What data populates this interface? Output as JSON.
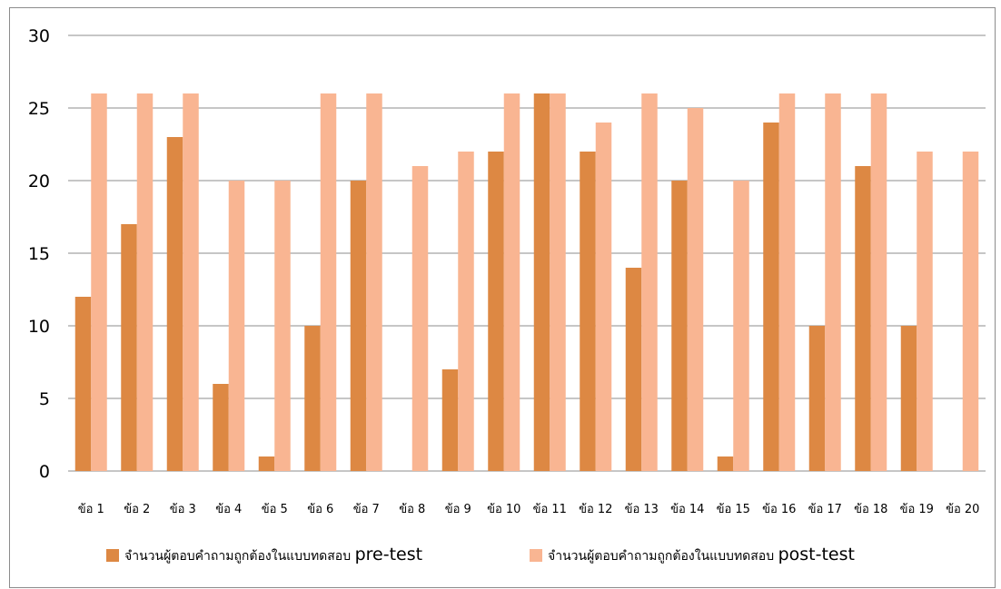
{
  "chart_data": {
    "type": "bar",
    "categories": [
      "ข้อ 1",
      "ข้อ 2",
      "ข้อ 3",
      "ข้อ 4",
      "ข้อ 5",
      "ข้อ 6",
      "ข้อ 7",
      "ข้อ 8",
      "ข้อ 9",
      "ข้อ 10",
      "ข้อ 11",
      "ข้อ 12",
      "ข้อ 13",
      "ข้อ 14",
      "ข้อ 15",
      "ข้อ 16",
      "ข้อ 17",
      "ข้อ 18",
      "ข้อ 19",
      "ข้อ 20"
    ],
    "series": [
      {
        "name": "จำนวนผู้ตอบคำถามถูกต้องในแบบทดสอบ pre-test",
        "name_thai": "จำนวนผู้ตอบคำถามถูกต้องในแบบทดสอบ ",
        "name_latin": "pre-test",
        "color": "#dd8843",
        "values": [
          12,
          17,
          23,
          6,
          1,
          10,
          20,
          0,
          7,
          22,
          26,
          22,
          14,
          20,
          1,
          24,
          10,
          21,
          10,
          0
        ]
      },
      {
        "name": "จำนวนผู้ตอบคำถามถูกต้องในแบบทดสอบ post-test",
        "name_thai": "จำนวนผู้ตอบคำถามถูกต้องในแบบทดสอบ ",
        "name_latin": "post-test",
        "color": "#f9b592",
        "values": [
          26,
          26,
          26,
          20,
          20,
          26,
          26,
          21,
          22,
          26,
          26,
          24,
          26,
          25,
          20,
          26,
          26,
          26,
          22,
          22
        ]
      }
    ],
    "ylim": [
      0,
      30
    ],
    "yticks": [
      0,
      5,
      10,
      15,
      20,
      25,
      30
    ],
    "grid": true,
    "legend": "bottom",
    "title": "",
    "xlabel": "",
    "ylabel": ""
  }
}
